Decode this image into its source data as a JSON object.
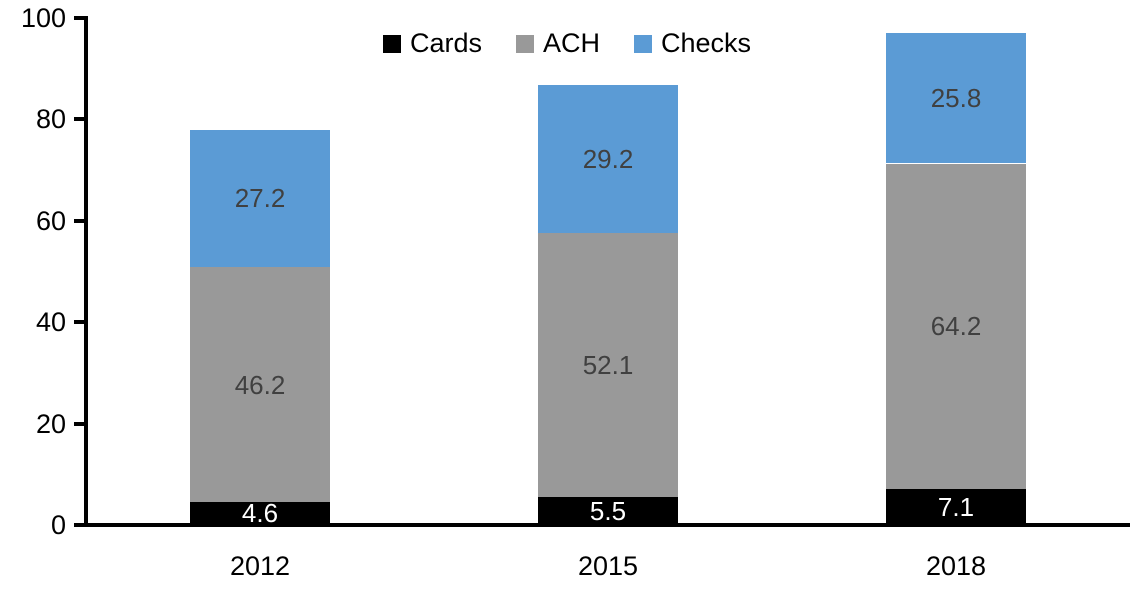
{
  "chart_data": {
    "type": "bar",
    "stacked": true,
    "title": "",
    "xlabel": "",
    "ylabel": "",
    "categories": [
      "2012",
      "2015",
      "2018"
    ],
    "series": [
      {
        "name": "Cards",
        "color": "#000000",
        "label_color": "#ffffff",
        "values": [
          4.6,
          5.5,
          7.1
        ]
      },
      {
        "name": "ACH",
        "color": "#999999",
        "label_color": "#404040",
        "values": [
          46.2,
          52.1,
          64.2
        ]
      },
      {
        "name": "Checks",
        "color": "#5b9bd5",
        "label_color": "#404040",
        "values": [
          27.2,
          29.2,
          25.8
        ]
      }
    ],
    "totals": [
      78.0,
      86.8,
      97.1
    ],
    "ylim": [
      0,
      100
    ],
    "yticks": [
      0,
      20,
      40,
      60,
      80,
      100
    ],
    "grid": false,
    "legend_position": "top",
    "data_labels_shown": true,
    "axis_color": "#000000"
  }
}
